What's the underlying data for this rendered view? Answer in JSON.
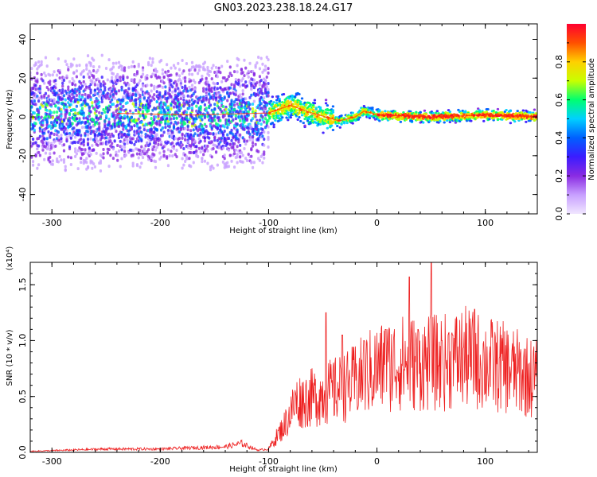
{
  "title": "GN03.2023.238.18.24.G17",
  "chart_data": [
    {
      "type": "heatmap",
      "xlabel": "Height of straight line (km)",
      "ylabel": "Frequency (Hz)",
      "xlim": [
        -320,
        148
      ],
      "ylim": [
        -50,
        48
      ],
      "x_ticks": [
        -300,
        -200,
        -100,
        0,
        100
      ],
      "y_ticks": [
        -40,
        -20,
        0,
        20,
        40
      ],
      "colorbar": {
        "label": "Normalized spectral amplitude",
        "range": [
          0,
          1
        ],
        "ticks": [
          0.0,
          0.2,
          0.4,
          0.6,
          0.8
        ],
        "tick_labels": [
          "0.0",
          "0.2",
          "0.4",
          "0.6",
          "0.8"
        ],
        "colormap": [
          "#f0e6ff",
          "#c8a0ff",
          "#8a2be2",
          "#3b1cff",
          "#0060ff",
          "#00d0ff",
          "#00ff70",
          "#c8ff00",
          "#ffd000",
          "#ff5000",
          "#ff0030"
        ]
      },
      "center_trace": [
        [
          -320,
          1
        ],
        [
          -250,
          2
        ],
        [
          -170,
          1
        ],
        [
          -100,
          2
        ],
        [
          -80,
          6
        ],
        [
          -60,
          2
        ],
        [
          -35,
          -2
        ],
        [
          -20,
          0
        ],
        [
          -12,
          3
        ],
        [
          -5,
          2
        ],
        [
          0,
          1
        ],
        [
          50,
          0
        ],
        [
          100,
          1
        ],
        [
          148,
          0
        ]
      ]
    },
    {
      "type": "line",
      "xlabel": "Height of straight line (km)",
      "ylabel": "SNR (10 * v/v)",
      "y_multiplier": "(x10⁴)",
      "xlim": [
        -320,
        148
      ],
      "ylim": [
        0,
        1.7
      ],
      "x_ticks": [
        -300,
        -200,
        -100,
        0,
        100
      ],
      "y_ticks": [
        0.0,
        0.5,
        1.0,
        1.5
      ],
      "y_tick_labels": [
        "0.0",
        "0.5",
        "1.0",
        "1.5"
      ],
      "line_color": "#ee2020",
      "envelope": [
        [
          -320,
          0.01
        ],
        [
          -250,
          0.03
        ],
        [
          -200,
          0.03
        ],
        [
          -140,
          0.05
        ],
        [
          -125,
          0.08
        ],
        [
          -110,
          0.02
        ],
        [
          -100,
          0.03
        ],
        [
          -85,
          0.25
        ],
        [
          -75,
          0.45
        ],
        [
          -55,
          0.5
        ],
        [
          -40,
          0.55
        ],
        [
          -25,
          0.6
        ],
        [
          -10,
          0.7
        ],
        [
          0,
          0.75
        ],
        [
          20,
          0.8
        ],
        [
          40,
          0.8
        ],
        [
          60,
          0.8
        ],
        [
          80,
          0.85
        ],
        [
          100,
          0.8
        ],
        [
          120,
          0.75
        ],
        [
          148,
          0.65
        ]
      ],
      "spikes": [
        [
          -47,
          1.25
        ],
        [
          -32,
          1.05
        ],
        [
          -12,
          1.0
        ],
        [
          8,
          1.1
        ],
        [
          30,
          1.57
        ],
        [
          38,
          1.1
        ],
        [
          50,
          1.7
        ],
        [
          60,
          1.0
        ],
        [
          70,
          1.05
        ],
        [
          90,
          1.28
        ]
      ]
    }
  ]
}
